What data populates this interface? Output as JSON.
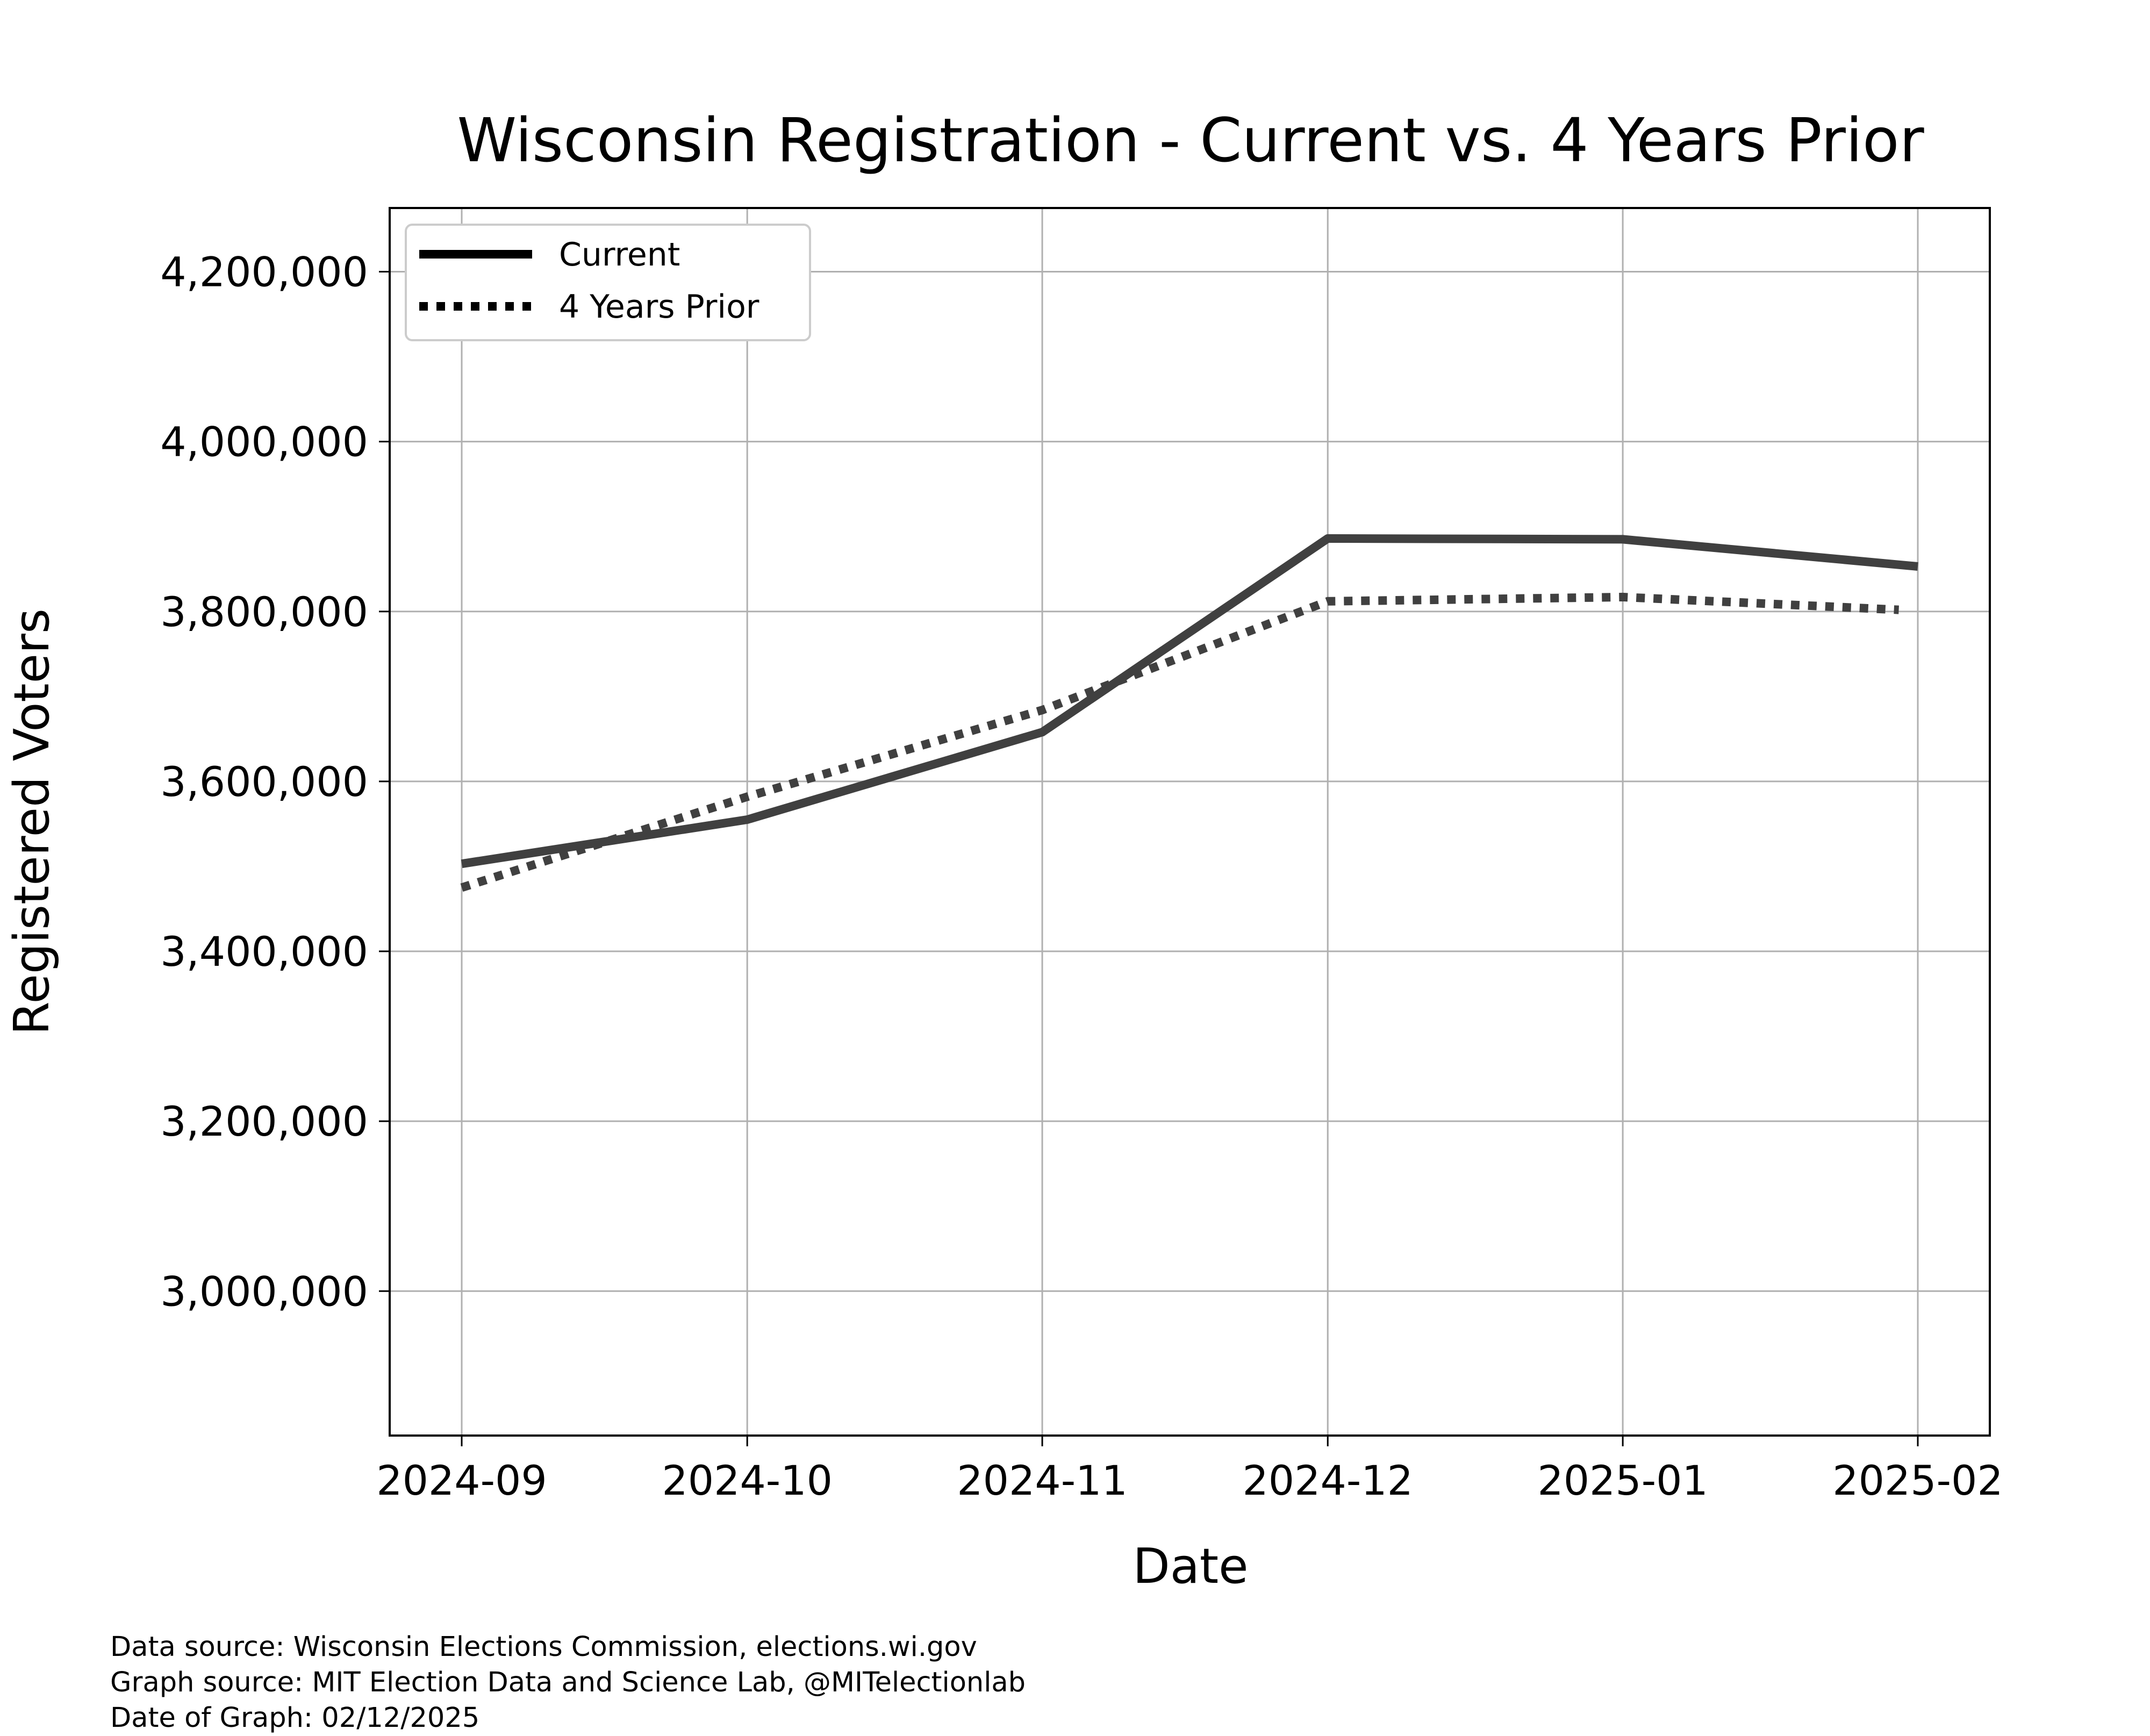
{
  "chart_data": {
    "type": "line",
    "title": "Wisconsin Registration - Current vs. 4 Years Prior",
    "xlabel": "Date",
    "ylabel": "Registered Voters",
    "x": [
      "2024-09",
      "2024-10",
      "2024-11",
      "2024-12",
      "2025-01",
      "2025-02"
    ],
    "x_tick_labels": [
      "2024-09",
      "2024-10",
      "2024-11",
      "2024-12",
      "2025-01",
      "2025-02"
    ],
    "y_ticks": [
      3000000,
      3200000,
      3400000,
      3600000,
      3800000,
      4000000,
      4200000
    ],
    "y_tick_labels": [
      "3,000,000",
      "3,200,000",
      "3,400,000",
      "3,600,000",
      "3,800,000",
      "4,000,000",
      "4,200,000"
    ],
    "ylim": [
      2830000,
      4275000
    ],
    "grid": true,
    "legend_position": "top-left",
    "series": [
      {
        "name": "Current",
        "style": "solid",
        "color": "#404040",
        "x": [
          "2024-09-01",
          "2024-10-01",
          "2024-11-01",
          "2024-12-01",
          "2025-01-01",
          "2025-02-01"
        ],
        "values": [
          3503000,
          3555000,
          3658000,
          3886000,
          3885000,
          3853000
        ]
      },
      {
        "name": "4 Years Prior",
        "style": "dotted",
        "color": "#404040",
        "x": [
          "2024-09-01",
          "2024-10-01",
          "2024-11-01",
          "2024-12-01",
          "2025-01-01",
          "2025-01-30"
        ],
        "values": [
          3475000,
          3582000,
          3684000,
          3812000,
          3817000,
          3802000
        ]
      }
    ]
  },
  "footnotes": [
    "Data source: Wisconsin Elections Commission, elections.wi.gov",
    "Graph source: MIT Election Data and Science Lab, @MITelectionlab",
    "Date of Graph: 02/12/2025"
  ]
}
